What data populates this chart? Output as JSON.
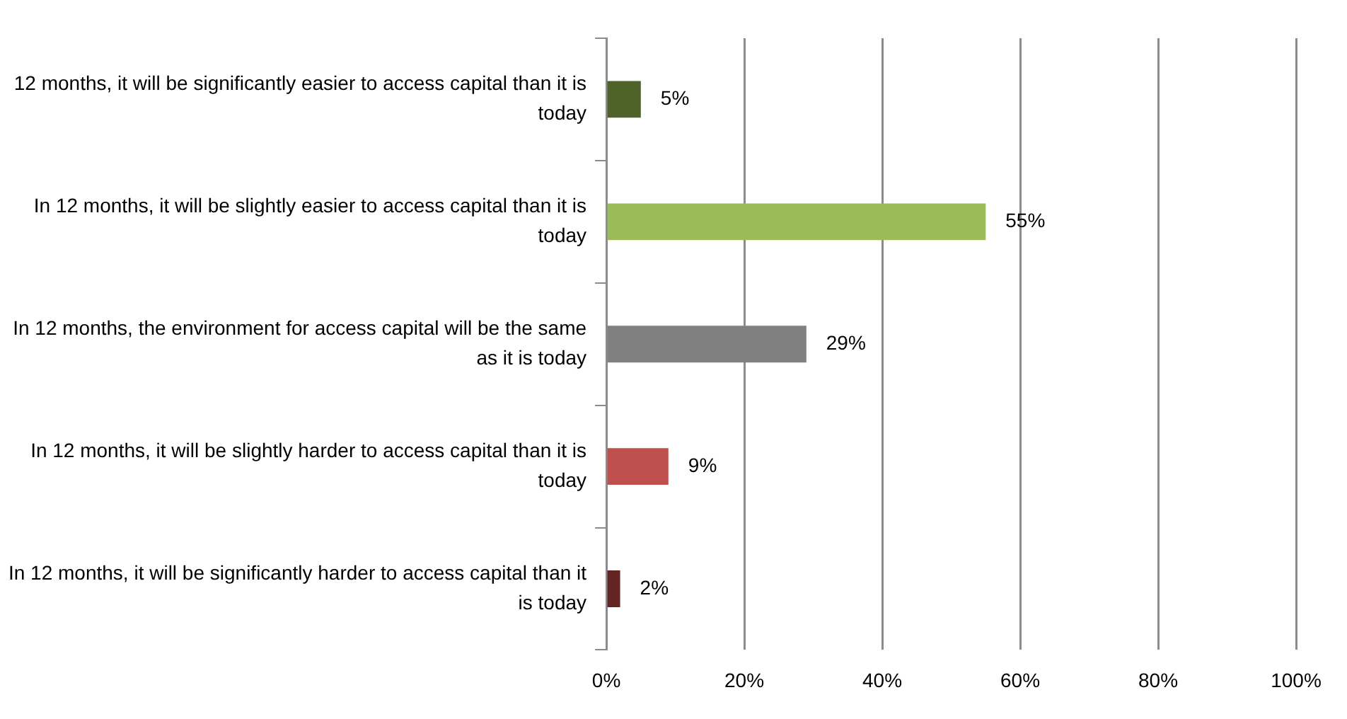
{
  "chart_data": {
    "type": "bar",
    "orientation": "horizontal",
    "categories": [
      "12 months, it will be significantly easier to access capital than it is today",
      "In 12 months, it will be slightly easier to access capital than it is today",
      "In 12 months, the environment for access capital will be the same as it is today",
      "In 12 months, it will be slightly harder to access capital than it is today",
      "In 12 months, it will be significantly harder to access capital than it is today"
    ],
    "values": [
      5,
      55,
      29,
      9,
      2
    ],
    "colors": [
      "#4f6228",
      "#9bbb59",
      "#808080",
      "#c0504d",
      "#632523"
    ],
    "value_labels": [
      "5%",
      "55%",
      "29%",
      "9%",
      "2%"
    ],
    "xlim": [
      0,
      100
    ],
    "xticks": [
      {
        "value": 0,
        "label": "0%"
      },
      {
        "value": 20,
        "label": "20%"
      },
      {
        "value": 40,
        "label": "40%"
      },
      {
        "value": 60,
        "label": "60%"
      },
      {
        "value": 80,
        "label": "80%"
      },
      {
        "value": 100,
        "label": "100%"
      }
    ],
    "grid": "x",
    "legend": false
  }
}
